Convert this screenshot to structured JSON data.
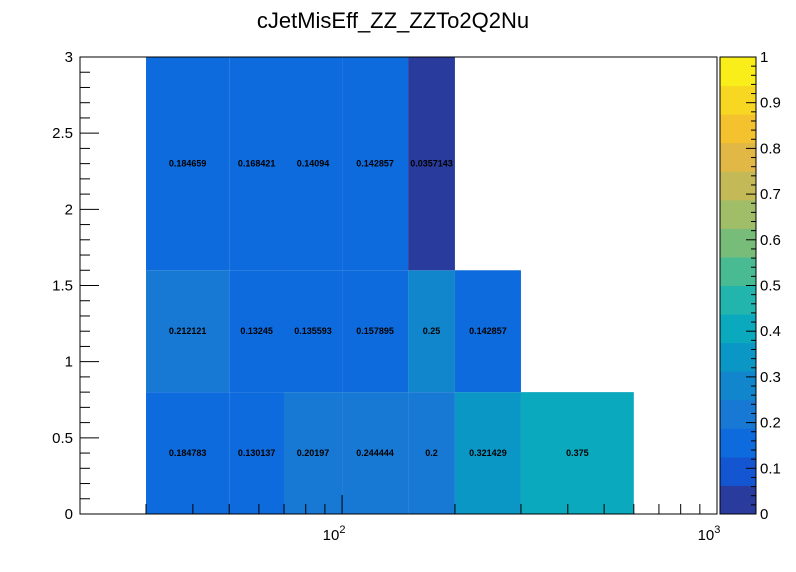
{
  "chart_data": {
    "type": "heatmap",
    "title": "cJetMisEff_ZZ_ZZTo2Q2Nu",
    "x_scale": "log",
    "xlim": [
      20,
      1000
    ],
    "ylim": [
      0,
      3
    ],
    "x_ticks": [
      {
        "base": "10",
        "exp": "2"
      },
      {
        "base": "10",
        "exp": "3"
      }
    ],
    "y_ticks": [
      "0",
      "0.5",
      "1",
      "1.5",
      "2",
      "2.5",
      "3"
    ],
    "z_range": [
      0,
      1
    ],
    "palette_ticks": [
      "0",
      "0.1",
      "0.2",
      "0.3",
      "0.4",
      "0.5",
      "0.6",
      "0.7",
      "0.8",
      "0.9",
      "1"
    ],
    "x_edges": [
      30,
      50,
      70,
      100,
      150,
      200,
      300,
      600
    ],
    "y_edges": [
      0,
      0.8,
      1.6,
      3
    ],
    "rows": [
      {
        "cells": [
          {
            "x0": 30,
            "x1": 50,
            "value": 0.184783,
            "label": "0.184783"
          },
          {
            "x0": 50,
            "x1": 70,
            "value": 0.130137,
            "label": "0.130137"
          },
          {
            "x0": 70,
            "x1": 100,
            "value": 0.20197,
            "label": "0.20197"
          },
          {
            "x0": 100,
            "x1": 150,
            "value": 0.244444,
            "label": "0.244444"
          },
          {
            "x0": 150,
            "x1": 200,
            "value": 0.2,
            "label": "0.2"
          },
          {
            "x0": 200,
            "x1": 300,
            "value": 0.321429,
            "label": "0.321429"
          },
          {
            "x0": 300,
            "x1": 600,
            "value": 0.375,
            "label": "0.375"
          }
        ]
      },
      {
        "cells": [
          {
            "x0": 30,
            "x1": 50,
            "value": 0.212121,
            "label": "0.212121"
          },
          {
            "x0": 50,
            "x1": 70,
            "value": 0.13245,
            "label": "0.13245"
          },
          {
            "x0": 70,
            "x1": 100,
            "value": 0.135593,
            "label": "0.135593"
          },
          {
            "x0": 100,
            "x1": 150,
            "value": 0.157895,
            "label": "0.157895"
          },
          {
            "x0": 150,
            "x1": 200,
            "value": 0.25,
            "label": "0.25"
          },
          {
            "x0": 200,
            "x1": 300,
            "value": 0.142857,
            "label": "0.142857"
          }
        ]
      },
      {
        "cells": [
          {
            "x0": 30,
            "x1": 50,
            "value": 0.184659,
            "label": "0.184659"
          },
          {
            "x0": 50,
            "x1": 70,
            "value": 0.168421,
            "label": "0.168421"
          },
          {
            "x0": 70,
            "x1": 100,
            "value": 0.14094,
            "label": "0.14094"
          },
          {
            "x0": 100,
            "x1": 150,
            "value": 0.142857,
            "label": "0.142857"
          },
          {
            "x0": 150,
            "x1": 200,
            "value": 0.0357143,
            "label": "0.0357143"
          }
        ]
      }
    ],
    "palette_colors": [
      "#2a3b9e",
      "#1456d2",
      "#0e6bde",
      "#1779d3",
      "#1186cc",
      "#0b97c6",
      "#0aa9bd",
      "#22b5ad",
      "#48bb93",
      "#78bc7a",
      "#a0bd68",
      "#c3b957",
      "#e1b745",
      "#f4c12f",
      "#f8d722",
      "#f9ee19"
    ]
  }
}
